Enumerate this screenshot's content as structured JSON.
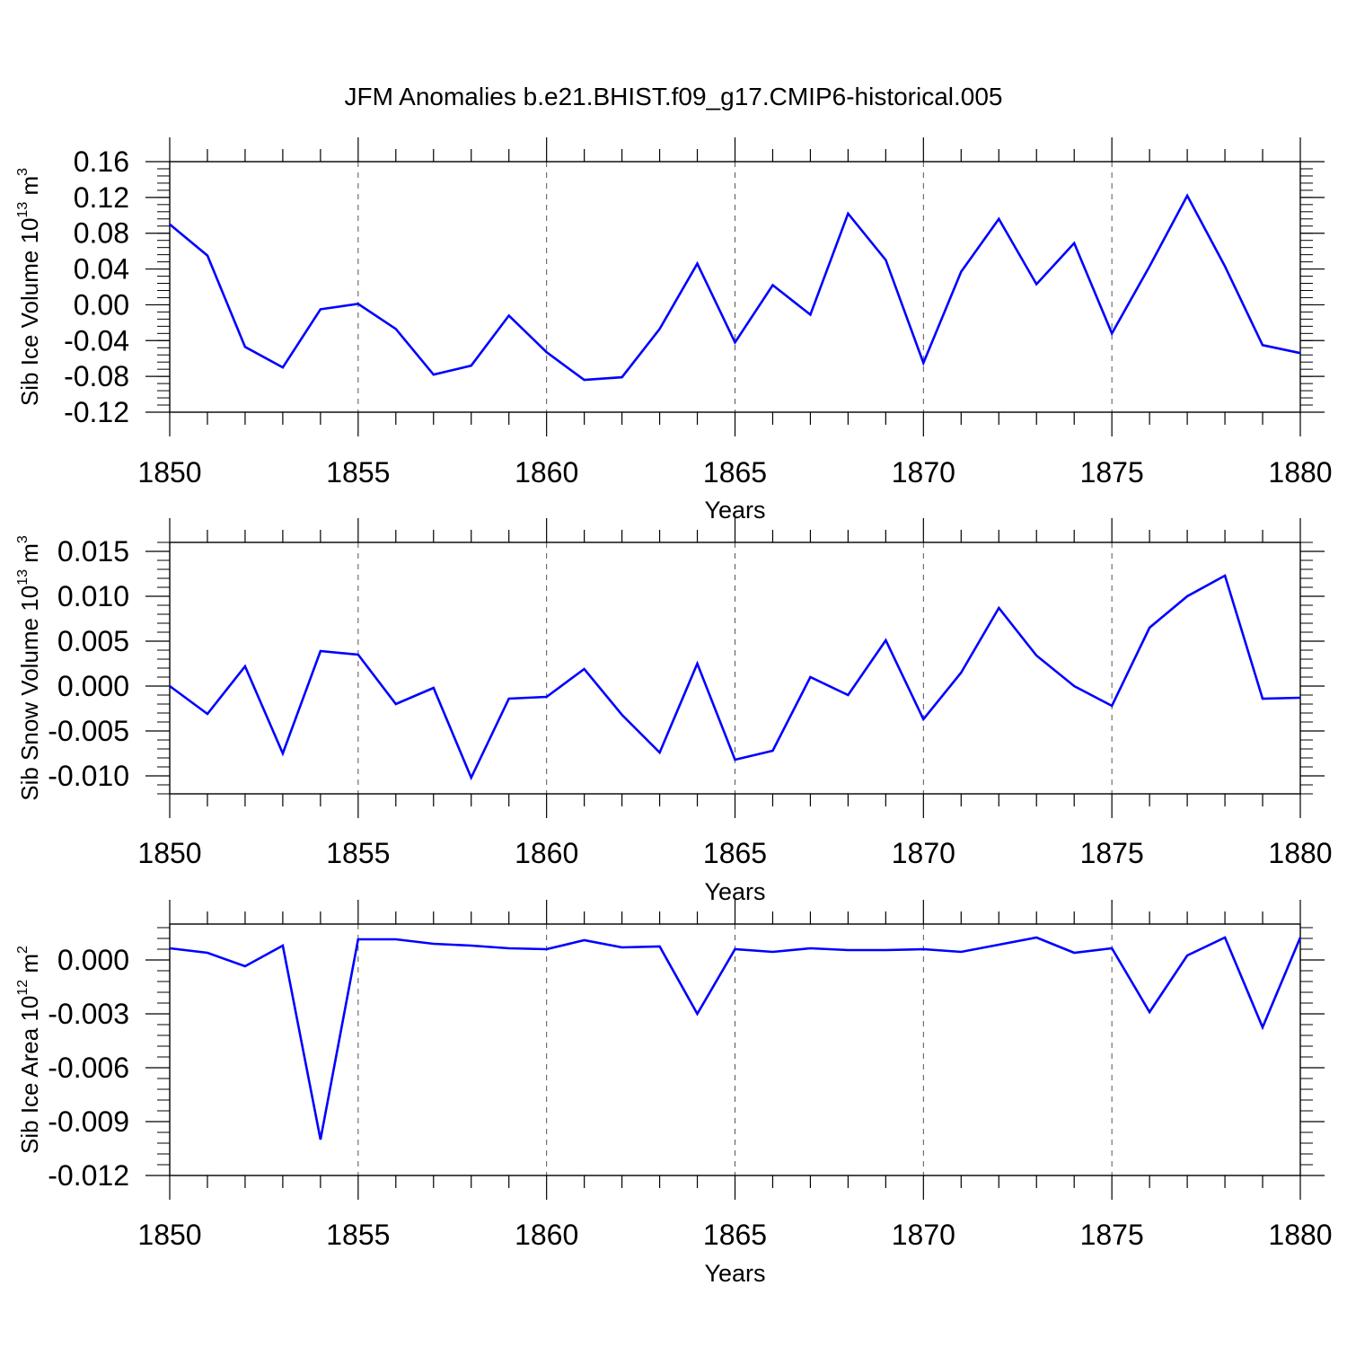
{
  "figure_title": "JFM Anomalies b.e21.BHIST.f09_g17.CMIP6-historical.005",
  "line_color": "#0000ff",
  "chart_data": [
    {
      "type": "line",
      "title": "JFM Anomalies b.e21.BHIST.f09_g17.CMIP6-historical.005",
      "ylabel_base": "Sib Ice Volume 10",
      "ylabel_exp": "13",
      "ylabel_unit": " m",
      "ylabel_unit_exp": "3",
      "xlabel": "Years",
      "xlim": [
        1850,
        1880
      ],
      "ylim": [
        -0.12,
        0.16
      ],
      "x_ticks": [
        "1850",
        "1855",
        "1860",
        "1865",
        "1870",
        "1875",
        "1880"
      ],
      "y_ticks": [
        "0.16",
        "0.12",
        "0.08",
        "0.04",
        "0.00",
        "-0.04",
        "-0.08",
        "-0.12"
      ],
      "y_tick_values": [
        0.16,
        0.12,
        0.08,
        0.04,
        0.0,
        -0.04,
        -0.08,
        -0.12
      ],
      "series": [
        {
          "name": "Sib Ice Volume",
          "x": [
            1850,
            1851,
            1852,
            1853,
            1854,
            1855,
            1856,
            1857,
            1858,
            1859,
            1860,
            1861,
            1862,
            1863,
            1864,
            1865,
            1866,
            1867,
            1868,
            1869,
            1870,
            1871,
            1872,
            1873,
            1874,
            1875,
            1876,
            1877,
            1878,
            1879,
            1880
          ],
          "values": [
            0.09,
            0.055,
            -0.047,
            -0.07,
            -0.005,
            0.001,
            -0.027,
            -0.078,
            -0.068,
            -0.012,
            -0.053,
            -0.084,
            -0.081,
            -0.027,
            0.046,
            -0.042,
            0.022,
            -0.011,
            0.102,
            0.05,
            -0.065,
            0.037,
            0.096,
            0.023,
            0.069,
            -0.032,
            0.043,
            0.122,
            0.043,
            -0.045,
            -0.054
          ]
        }
      ]
    },
    {
      "type": "line",
      "ylabel_base": "Sib Snow Volume 10",
      "ylabel_exp": "13",
      "ylabel_unit": " m",
      "ylabel_unit_exp": "3",
      "xlabel": "Years",
      "xlim": [
        1850,
        1880
      ],
      "ylim": [
        -0.012,
        0.016
      ],
      "x_ticks": [
        "1850",
        "1855",
        "1860",
        "1865",
        "1870",
        "1875",
        "1880"
      ],
      "y_ticks": [
        "0.015",
        "0.010",
        "0.005",
        "0.000",
        "-0.005",
        "-0.010"
      ],
      "y_tick_values": [
        0.015,
        0.01,
        0.005,
        0.0,
        -0.005,
        -0.01
      ],
      "series": [
        {
          "name": "Sib Snow Volume",
          "x": [
            1850,
            1851,
            1852,
            1853,
            1854,
            1855,
            1856,
            1857,
            1858,
            1859,
            1860,
            1861,
            1862,
            1863,
            1864,
            1865,
            1866,
            1867,
            1868,
            1869,
            1870,
            1871,
            1872,
            1873,
            1874,
            1875,
            1876,
            1877,
            1878,
            1879,
            1880
          ],
          "values": [
            0.0,
            -0.0031,
            0.0022,
            -0.0075,
            0.0039,
            0.0035,
            -0.002,
            -0.0002,
            -0.0102,
            -0.0014,
            -0.0012,
            0.0019,
            -0.0032,
            -0.0074,
            0.0025,
            -0.0082,
            -0.0072,
            0.001,
            -0.001,
            0.0051,
            -0.0037,
            0.0015,
            0.0087,
            0.0034,
            0.0,
            -0.0022,
            0.0065,
            0.01,
            0.0123,
            -0.0014,
            -0.0013
          ]
        }
      ]
    },
    {
      "type": "line",
      "ylabel_base": "Sib Ice Area 10",
      "ylabel_exp": "12",
      "ylabel_unit": " m",
      "ylabel_unit_exp": "2",
      "xlabel": "Years",
      "xlim": [
        1850,
        1880
      ],
      "ylim": [
        -0.012,
        0.002
      ],
      "x_ticks": [
        "1850",
        "1855",
        "1860",
        "1865",
        "1870",
        "1875",
        "1880"
      ],
      "y_ticks": [
        "0.000",
        "-0.003",
        "-0.006",
        "-0.009",
        "-0.012"
      ],
      "y_tick_values": [
        0.0,
        -0.003,
        -0.006,
        -0.009,
        -0.012
      ],
      "series": [
        {
          "name": "Sib Ice Area",
          "x": [
            1850,
            1851,
            1852,
            1853,
            1854,
            1855,
            1856,
            1857,
            1858,
            1859,
            1860,
            1861,
            1862,
            1863,
            1864,
            1865,
            1866,
            1867,
            1868,
            1869,
            1870,
            1871,
            1872,
            1873,
            1874,
            1875,
            1876,
            1877,
            1878,
            1879,
            1880
          ],
          "values": [
            0.00065,
            0.0004,
            -0.00035,
            0.0008,
            -0.01,
            0.00115,
            0.00115,
            0.0009,
            0.0008,
            0.00065,
            0.0006,
            0.0011,
            0.0007,
            0.00075,
            -0.003,
            0.0006,
            0.00045,
            0.00065,
            0.00055,
            0.00055,
            0.0006,
            0.00045,
            0.00085,
            0.00125,
            0.0004,
            0.00065,
            -0.0029,
            0.00025,
            0.00125,
            -0.00375,
            0.00125
          ]
        }
      ]
    }
  ]
}
